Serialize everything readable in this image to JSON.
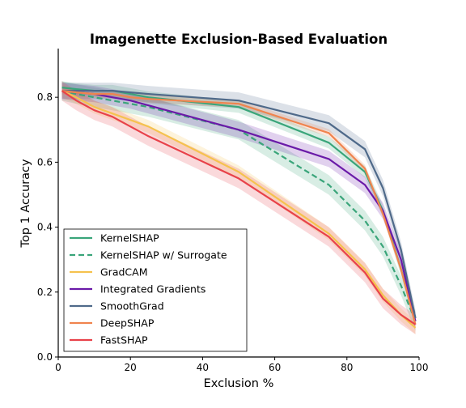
{
  "chart_data": {
    "type": "line",
    "title": "Imagenette Exclusion-Based Evaluation",
    "xlabel": "Exclusion %",
    "ylabel": "Top 1 Accuracy",
    "xlim": [
      0,
      100
    ],
    "ylim": [
      0,
      0.95
    ],
    "xticks": [
      0,
      20,
      40,
      60,
      80,
      100
    ],
    "yticks": [
      0.0,
      0.2,
      0.4,
      0.6,
      0.8
    ],
    "x": [
      1,
      5,
      10,
      15,
      20,
      25,
      50,
      75,
      85,
      90,
      95,
      99
    ],
    "legend_position": "lower-left",
    "grid": false,
    "series": [
      {
        "name": "KernelSHAP",
        "color": "#3aa57a",
        "dash": "solid",
        "values": [
          0.83,
          0.825,
          0.82,
          0.82,
          0.81,
          0.8,
          0.77,
          0.66,
          0.57,
          0.45,
          0.27,
          0.12
        ],
        "band": 0.018
      },
      {
        "name": "KernelSHAP w/ Surrogate",
        "color": "#3aa57a",
        "dash": "dashed",
        "values": [
          0.82,
          0.81,
          0.8,
          0.79,
          0.78,
          0.77,
          0.7,
          0.53,
          0.42,
          0.34,
          0.22,
          0.11
        ],
        "band": 0.03
      },
      {
        "name": "GradCAM",
        "color": "#f5c24e",
        "dash": "solid",
        "values": [
          0.82,
          0.8,
          0.77,
          0.75,
          0.73,
          0.71,
          0.57,
          0.38,
          0.27,
          0.19,
          0.13,
          0.09
        ],
        "band": 0.02
      },
      {
        "name": "Integrated Gradients",
        "color": "#6a1aa8",
        "dash": "solid",
        "values": [
          0.82,
          0.815,
          0.81,
          0.8,
          0.79,
          0.775,
          0.7,
          0.61,
          0.53,
          0.45,
          0.3,
          0.11
        ],
        "band": 0.025
      },
      {
        "name": "SmoothGrad",
        "color": "#4f6a8a",
        "dash": "solid",
        "values": [
          0.82,
          0.82,
          0.82,
          0.82,
          0.815,
          0.81,
          0.79,
          0.72,
          0.64,
          0.52,
          0.33,
          0.12
        ],
        "band": 0.025
      },
      {
        "name": "DeepSHAP",
        "color": "#f0844e",
        "dash": "solid",
        "values": [
          0.82,
          0.815,
          0.81,
          0.81,
          0.8,
          0.795,
          0.78,
          0.69,
          0.58,
          0.44,
          0.27,
          0.1
        ],
        "band": 0.012
      },
      {
        "name": "FastSHAP",
        "color": "#e8424a",
        "dash": "solid",
        "values": [
          0.82,
          0.79,
          0.76,
          0.74,
          0.71,
          0.68,
          0.55,
          0.37,
          0.26,
          0.18,
          0.13,
          0.1
        ],
        "band": 0.03
      }
    ]
  }
}
